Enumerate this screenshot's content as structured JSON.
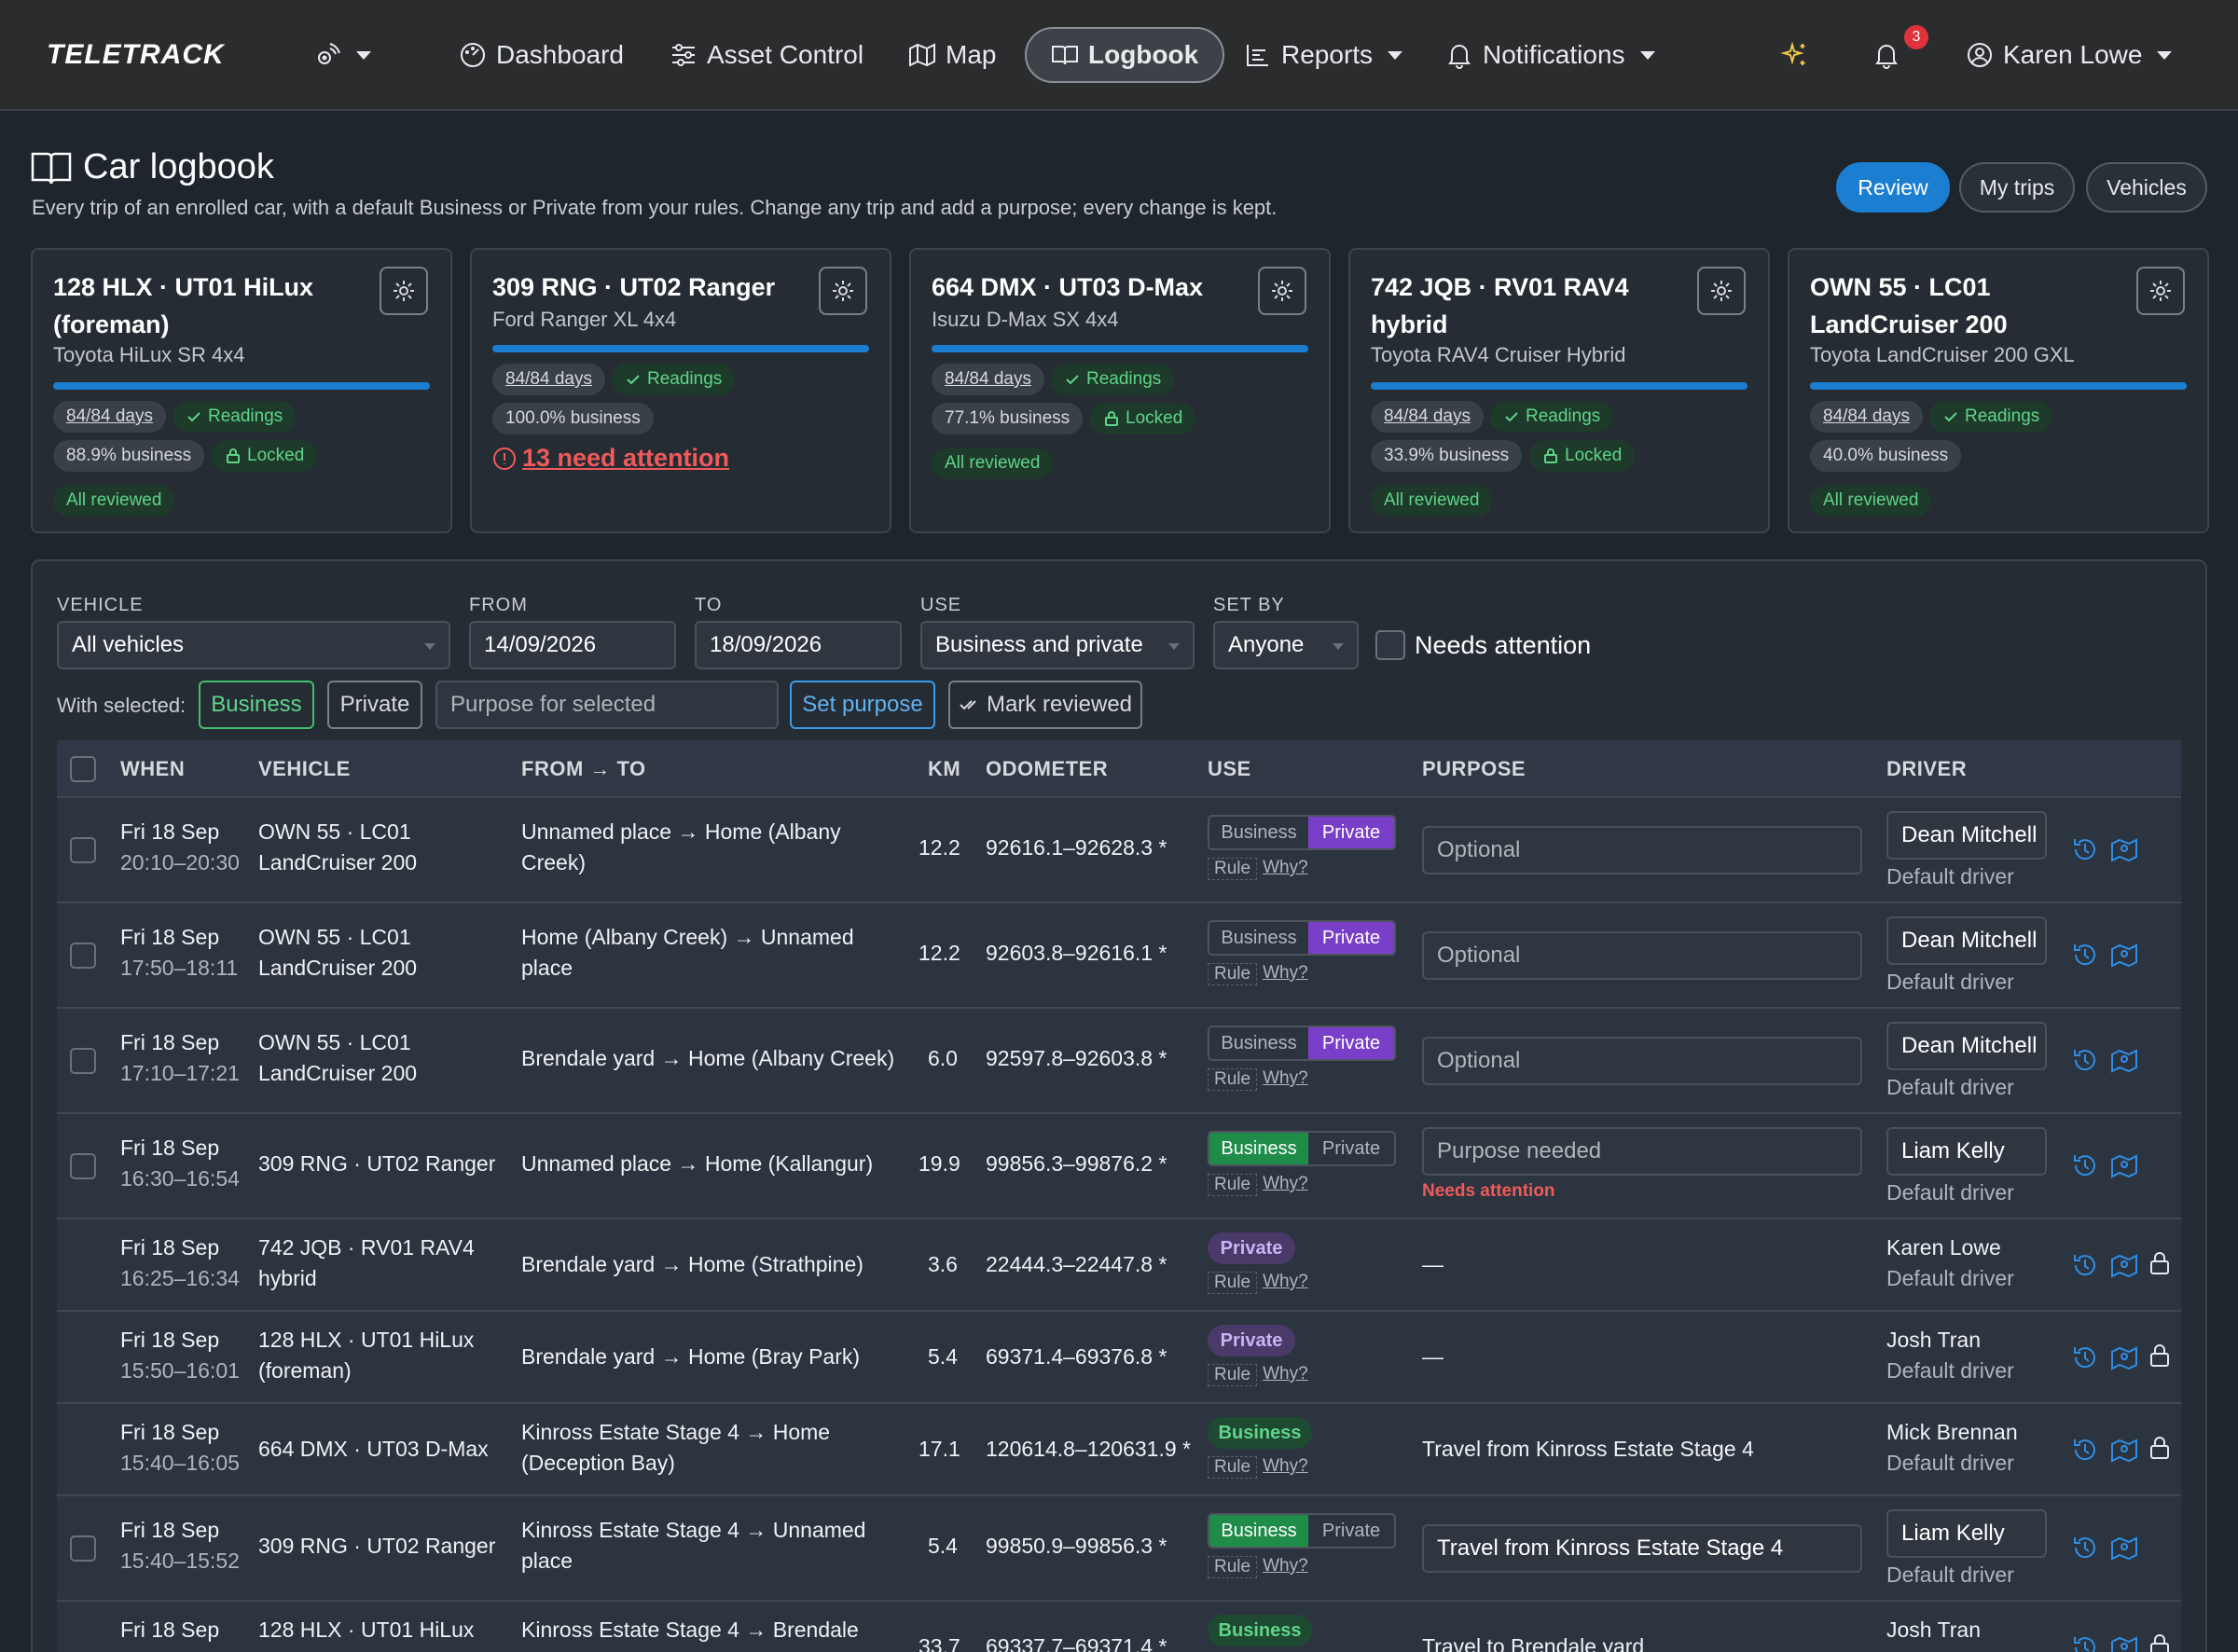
{
  "nav": {
    "logo": "TELETRACK",
    "dashboard": "Dashboard",
    "asset_control": "Asset Control",
    "map": "Map",
    "logbook": "Logbook",
    "reports": "Reports",
    "notifications": "Notifications",
    "notification_count": "3",
    "user": "Karen Lowe"
  },
  "header": {
    "title": "Car logbook",
    "subtitle": "Every trip of an enrolled car, with a default Business or Private from your rules. Change any trip and add a purpose; every change is kept.",
    "review": "Review",
    "my_trips": "My trips",
    "vehicles": "Vehicles"
  },
  "vehicles": [
    {
      "name": "128 HLX · UT01 HiLux (foreman)",
      "model": "Toyota HiLux SR 4x4",
      "days": "84/84 days",
      "readings": "Readings",
      "business": "88.9% business",
      "locked": "Locked",
      "status": "All reviewed"
    },
    {
      "name": "309 RNG · UT02 Ranger",
      "model": "Ford Ranger XL 4x4",
      "days": "84/84 days",
      "readings": "Readings",
      "business": "100.0% business",
      "attention": "13 need attention"
    },
    {
      "name": "664 DMX · UT03 D-Max",
      "model": "Isuzu D-Max SX 4x4",
      "days": "84/84 days",
      "readings": "Readings",
      "business": "77.1% business",
      "locked": "Locked",
      "status": "All reviewed"
    },
    {
      "name": "742 JQB · RV01 RAV4 hybrid",
      "model": "Toyota RAV4 Cruiser Hybrid",
      "days": "84/84 days",
      "readings": "Readings",
      "business": "33.9% business",
      "locked": "Locked",
      "status": "All reviewed"
    },
    {
      "name": "OWN 55 · LC01 LandCruiser 200",
      "model": "Toyota LandCruiser 200 GXL",
      "days": "84/84 days",
      "readings": "Readings",
      "business": "40.0% business",
      "status": "All reviewed"
    }
  ],
  "filters": {
    "vehicle_label": "VEHICLE",
    "vehicle_value": "All vehicles",
    "from_label": "FROM",
    "from_value": "14/09/2026",
    "to_label": "TO",
    "to_value": "18/09/2026",
    "use_label": "USE",
    "use_value": "Business and private",
    "setby_label": "SET BY",
    "setby_value": "Anyone",
    "needs_attention": "Needs attention"
  },
  "actions": {
    "with_selected": "With selected:",
    "business": "Business",
    "private": "Private",
    "purpose_placeholder": "Purpose for selected",
    "set_purpose": "Set purpose",
    "mark_reviewed": "Mark reviewed"
  },
  "table": {
    "headers": {
      "when": "WHEN",
      "vehicle": "VEHICLE",
      "from_to": "FROM → TO",
      "km": "KM",
      "odometer": "ODOMETER",
      "use": "USE",
      "purpose": "PURPOSE",
      "driver": "DRIVER"
    },
    "seg_business": "Business",
    "seg_private": "Private",
    "rule": "Rule",
    "why": "Why?",
    "purpose_optional": "Optional",
    "purpose_needed": "Purpose needed",
    "needs_attention": "Needs attention",
    "default_driver": "Default driver",
    "dash": "—",
    "rows": [
      {
        "date": "Fri 18 Sep",
        "time": "20:10–20:30",
        "vehicle": "OWN 55 · LC01 LandCruiser 200",
        "route": "Unnamed place → Home (Albany Creek)",
        "km": "12.2",
        "odometer": "92616.1–92628.3 *",
        "use": "Private",
        "driver": "Dean Mitchell"
      },
      {
        "date": "Fri 18 Sep",
        "time": "17:50–18:11",
        "vehicle": "OWN 55 · LC01 LandCruiser 200",
        "route": "Home (Albany Creek) → Unnamed place",
        "km": "12.2",
        "odometer": "92603.8–92616.1 *",
        "use": "Private",
        "driver": "Dean Mitchell"
      },
      {
        "date": "Fri 18 Sep",
        "time": "17:10–17:21",
        "vehicle": "OWN 55 · LC01 LandCruiser 200",
        "route": "Brendale yard → Home (Albany Creek)",
        "km": "6.0",
        "odometer": "92597.8–92603.8 *",
        "use": "Private",
        "driver": "Dean Mitchell"
      },
      {
        "date": "Fri 18 Sep",
        "time": "16:30–16:54",
        "vehicle": "309 RNG · UT02 Ranger",
        "route": "Unnamed place → Home (Kallangur)",
        "km": "19.9",
        "odometer": "99856.3–99876.2 *",
        "use": "Business",
        "driver": "Liam Kelly"
      },
      {
        "date": "Fri 18 Sep",
        "time": "16:25–16:34",
        "vehicle": "742 JQB · RV01 RAV4 hybrid",
        "route": "Brendale yard → Home (Strathpine)",
        "km": "3.6",
        "odometer": "22444.3–22447.8 *",
        "use": "Private",
        "driver": "Karen Lowe"
      },
      {
        "date": "Fri 18 Sep",
        "time": "15:50–16:01",
        "vehicle": "128 HLX · UT01 HiLux (foreman)",
        "route": "Brendale yard → Home (Bray Park)",
        "km": "5.4",
        "odometer": "69371.4–69376.8 *",
        "use": "Private",
        "driver": "Josh Tran"
      },
      {
        "date": "Fri 18 Sep",
        "time": "15:40–16:05",
        "vehicle": "664 DMX · UT03 D-Max",
        "route": "Kinross Estate Stage 4 → Home (Deception Bay)",
        "km": "17.1",
        "odometer": "120614.8–120631.9 *",
        "use": "Business",
        "purpose": "Travel from Kinross Estate Stage 4",
        "driver": "Mick Brennan"
      },
      {
        "date": "Fri 18 Sep",
        "time": "15:40–15:52",
        "vehicle": "309 RNG · UT02 Ranger",
        "route": "Kinross Estate Stage 4 → Unnamed place",
        "km": "5.4",
        "odometer": "99850.9–99856.3 *",
        "use": "Business",
        "purpose": "Travel from Kinross Estate Stage 4",
        "driver": "Liam Kelly"
      },
      {
        "date": "Fri 18 Sep",
        "vehicle": "128 HLX · UT01 HiLux",
        "route": "Kinross Estate Stage 4 → Brendale",
        "km": "33.7",
        "odometer": "69337.7–69371.4 *",
        "use": "Business",
        "purpose": "Travel to Brendale yard",
        "driver": "Josh Tran"
      }
    ]
  }
}
